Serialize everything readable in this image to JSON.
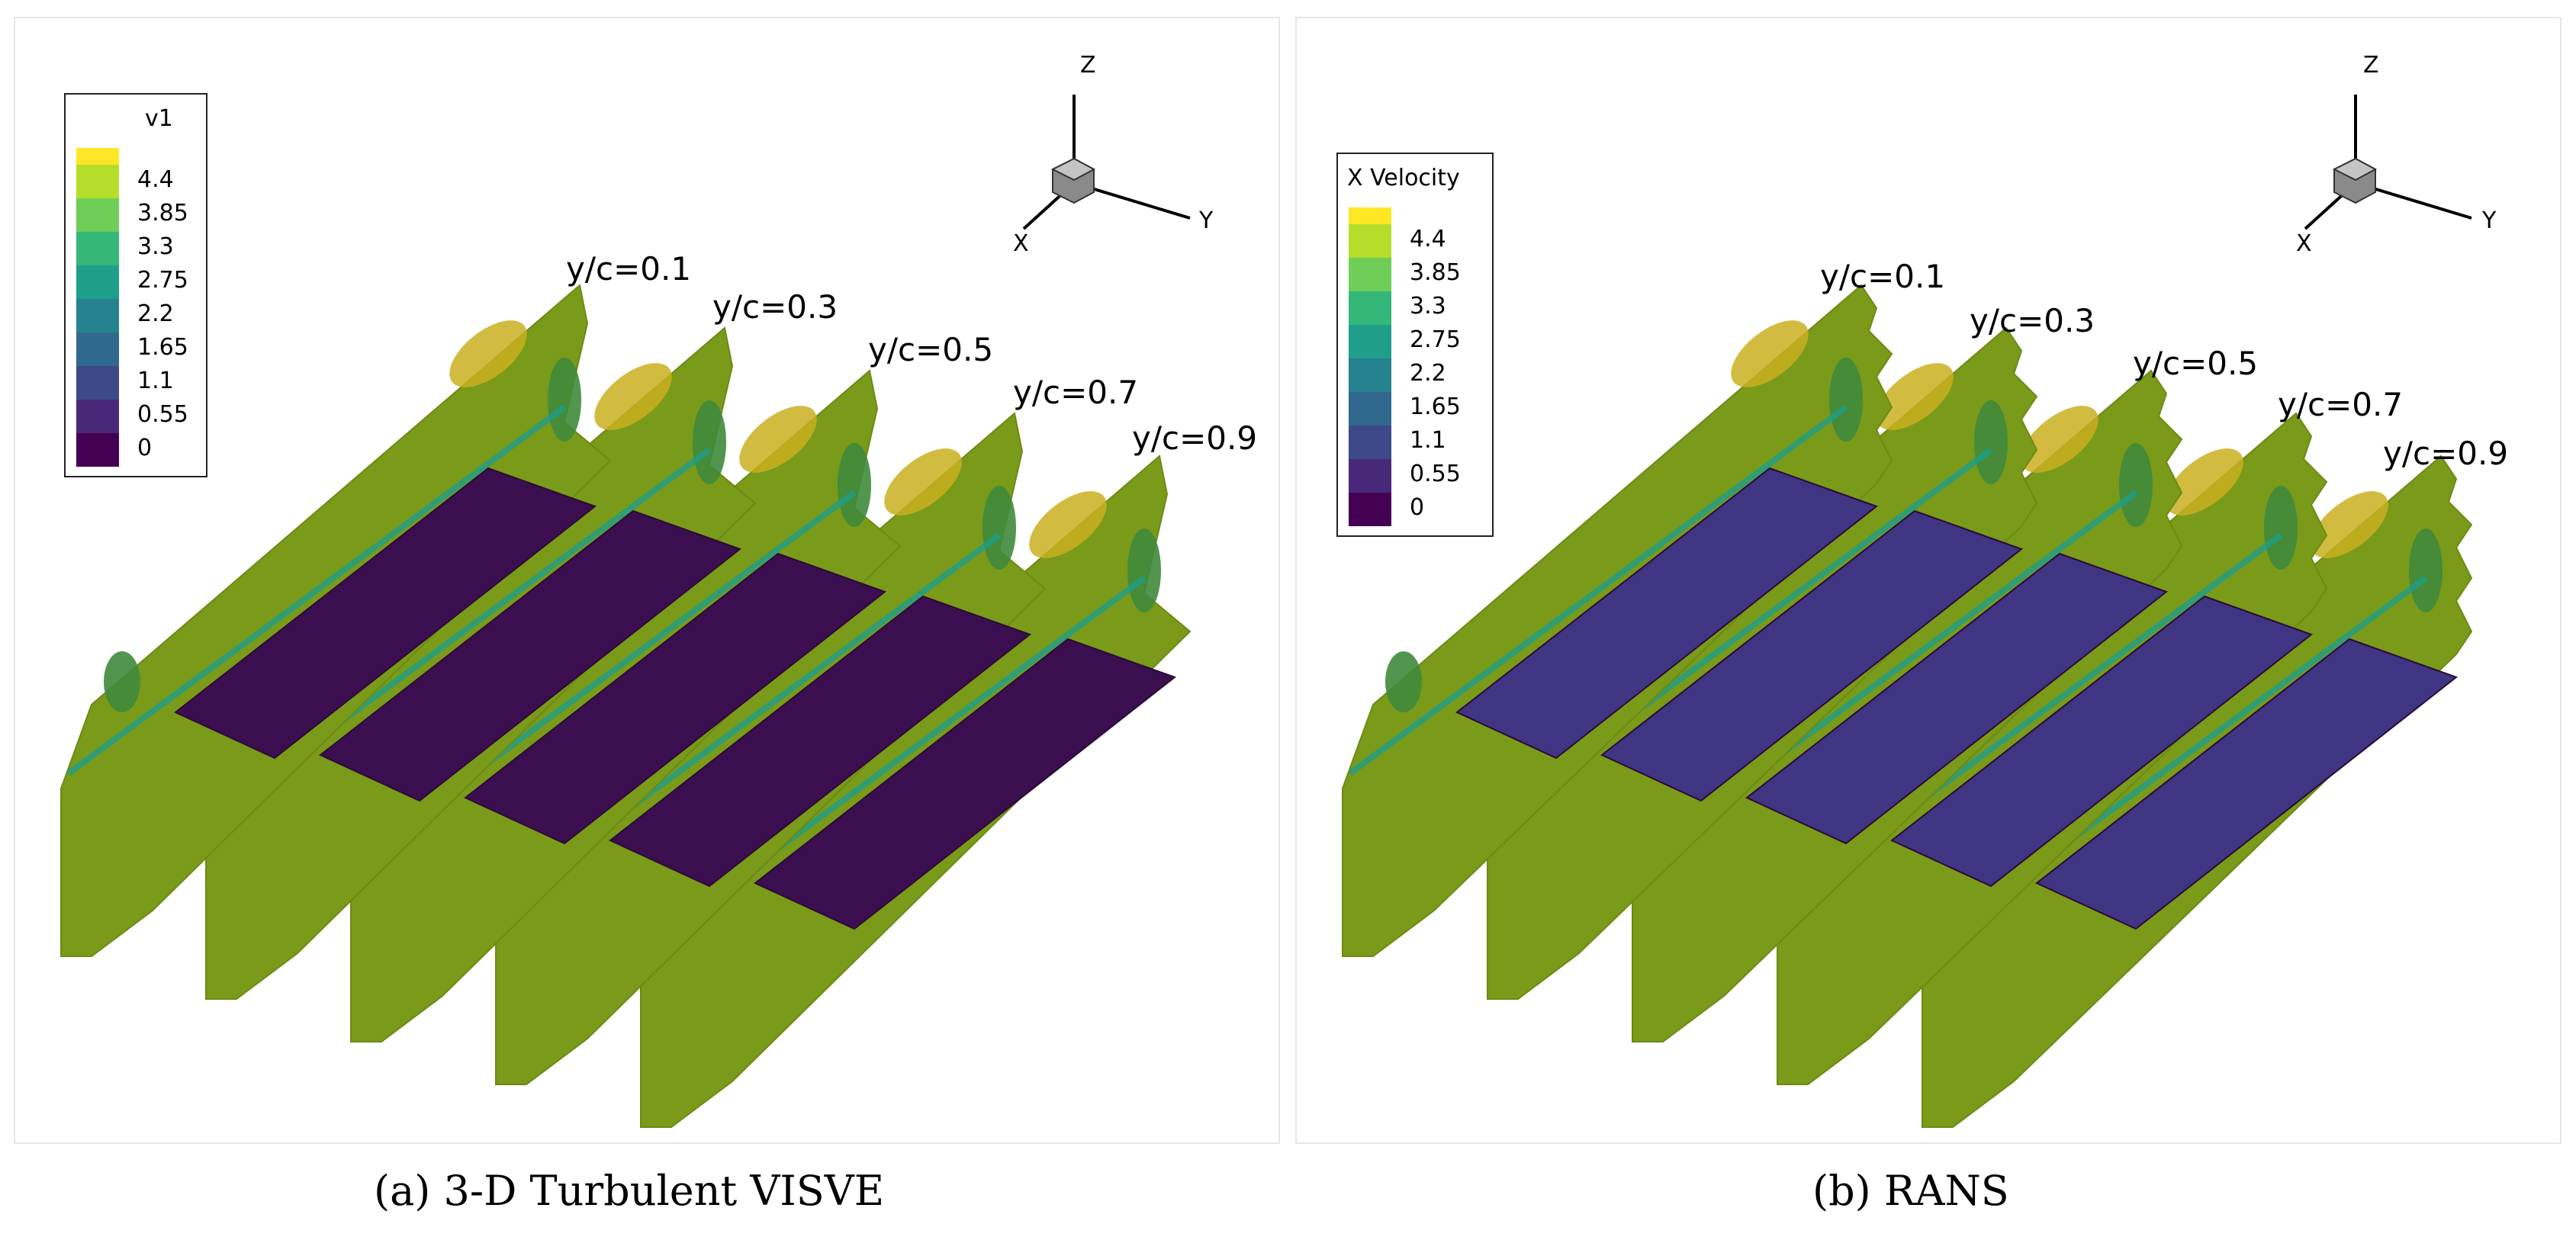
{
  "panels": [
    {
      "id": "a",
      "caption": "(a)  3-D Turbulent VISVE",
      "legend": {
        "title": "v1",
        "levels": [
          "4.4",
          "3.85",
          "3.3",
          "2.75",
          "2.2",
          "1.65",
          "1.1",
          "0.55",
          "0"
        ]
      },
      "slices": [
        "y/c=0.1",
        "y/c=0.3",
        "y/c=0.5",
        "y/c=0.7",
        "y/c=0.9"
      ],
      "axes": {
        "z": "Z",
        "x": "X",
        "y": "Y"
      },
      "surface_color": "#3b0f4f"
    },
    {
      "id": "b",
      "caption": "(b)  RANS",
      "legend": {
        "title": "X Velocity",
        "levels": [
          "4.4",
          "3.85",
          "3.3",
          "2.75",
          "2.2",
          "1.65",
          "1.1",
          "0.55",
          "0"
        ]
      },
      "slices": [
        "y/c=0.1",
        "y/c=0.3",
        "y/c=0.5",
        "y/c=0.7",
        "y/c=0.9"
      ],
      "axes": {
        "z": "Z",
        "x": "X",
        "y": "Y"
      },
      "surface_color": "#3f3583"
    }
  ],
  "colormap": [
    "#fde725",
    "#b5de2b",
    "#6ece58",
    "#35b779",
    "#1f9e89",
    "#26828e",
    "#31688e",
    "#3e4989",
    "#482878",
    "#440154"
  ],
  "background_field_color": "#7a9a1a"
}
